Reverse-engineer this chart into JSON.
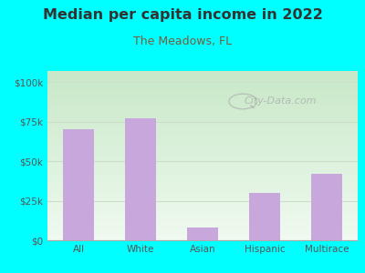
{
  "title": "Median per capita income in 2022",
  "subtitle": "The Meadows, FL",
  "categories": [
    "All",
    "White",
    "Asian",
    "Hispanic",
    "Multirace"
  ],
  "values": [
    70000,
    77000,
    8000,
    30000,
    42000
  ],
  "bar_color": "#c8a8dc",
  "bar_edge_color": "#c8a8dc",
  "background_outer": "#00ffff",
  "title_color": "#333333",
  "subtitle_color": "#7a5c3a",
  "ytick_labels": [
    "$0",
    "$25k",
    "$50k",
    "$75k",
    "$100k"
  ],
  "ytick_values": [
    0,
    25000,
    50000,
    75000,
    100000
  ],
  "ylim": [
    0,
    107000
  ],
  "watermark": "City-Data.com",
  "watermark_color": "#aaaaaa",
  "tick_color": "#555555",
  "grid_color": "#ccddcc",
  "gradient_top": "#c8e8c8",
  "gradient_bottom": "#f0faf0"
}
